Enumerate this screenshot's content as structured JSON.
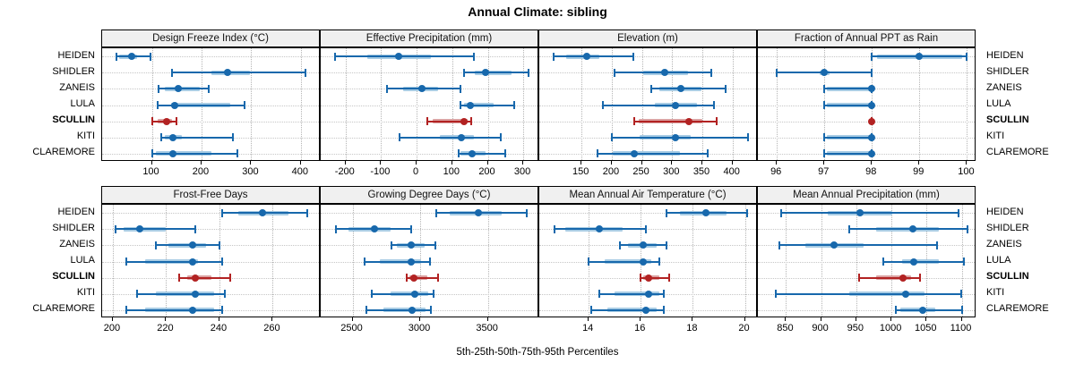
{
  "title": "Annual Climate: sibling",
  "footer": "5th-25th-50th-75th-95th Percentiles",
  "colors": {
    "blue_dark": "#1768ac",
    "blue_light": "#a8cce4",
    "red_dark": "#b22222",
    "red_light": "#dba3a3",
    "header_bg": "#f0f0f0",
    "panel_border": "#000000",
    "grid": "#b5b5b5"
  },
  "chart_data": {
    "type": "percentile-dotplot",
    "percentiles": [
      5,
      25,
      50,
      75,
      95
    ],
    "sites": [
      "HEIDEN",
      "SHIDLER",
      "ZANEIS",
      "LULA",
      "SCULLIN",
      "KITI",
      "CLAREMORE"
    ],
    "highlight_site": "SCULLIN",
    "legend_note": "5th-25th-50th-75th-95th Percentiles",
    "panels": [
      {
        "title": "Design Freeze Index (°C)",
        "row": 0,
        "col": 0,
        "xlim": [
          0,
          440
        ],
        "ticks": [
          100,
          200,
          300,
          400
        ],
        "values": {
          "HEIDEN": [
            28,
            34,
            60,
            71,
            98
          ],
          "SHIDLER": [
            140,
            220,
            252,
            298,
            410
          ],
          "ZANEIS": [
            113,
            127,
            154,
            197,
            215
          ],
          "LULA": [
            112,
            138,
            146,
            258,
            287
          ],
          "SCULLIN": [
            100,
            112,
            130,
            140,
            150
          ],
          "KITI": [
            119,
            127,
            143,
            160,
            263
          ],
          "CLAREMORE": [
            101,
            108,
            142,
            220,
            272
          ]
        }
      },
      {
        "title": "Effective Precipitation (mm)",
        "row": 0,
        "col": 1,
        "xlim": [
          -270,
          345
        ],
        "ticks": [
          -200,
          -100,
          0,
          100,
          200,
          300
        ],
        "values": {
          "HEIDEN": [
            -230,
            -140,
            -50,
            40,
            160
          ],
          "SHIDLER": [
            134,
            164,
            194,
            266,
            315
          ],
          "ZANEIS": [
            -83,
            -39,
            15,
            61,
            124
          ],
          "LULA": [
            124,
            134,
            150,
            216,
            275
          ],
          "SCULLIN": [
            30,
            45,
            134,
            144,
            154
          ],
          "KITI": [
            -49,
            64,
            125,
            161,
            236
          ],
          "CLAREMORE": [
            118,
            123,
            155,
            195,
            250
          ]
        }
      },
      {
        "title": "Elevation (m)",
        "row": 0,
        "col": 2,
        "xlim": [
          80,
          442
        ],
        "ticks": [
          150,
          200,
          250,
          300,
          350,
          400
        ],
        "values": {
          "HEIDEN": [
            103,
            125,
            158,
            180,
            235
          ],
          "SHIDLER": [
            205,
            252,
            288,
            327,
            365
          ],
          "ZANEIS": [
            265,
            278,
            315,
            348,
            388
          ],
          "LULA": [
            185,
            271,
            306,
            341,
            369
          ],
          "SCULLIN": [
            237,
            245,
            328,
            350,
            374
          ],
          "KITI": [
            200,
            246,
            305,
            331,
            425
          ],
          "CLAREMORE": [
            177,
            201,
            237,
            313,
            359
          ]
        }
      },
      {
        "title": "Fraction of Annual PPT as Rain",
        "row": 0,
        "col": 3,
        "xlim": [
          95.6,
          100.2
        ],
        "ticks": [
          96,
          97,
          98,
          99,
          100
        ],
        "values": {
          "HEIDEN": [
            98,
            98.1,
            99,
            99.9,
            100
          ],
          "SHIDLER": [
            96,
            96.9,
            97,
            97.1,
            98
          ],
          "ZANEIS": [
            97,
            97.05,
            98,
            98,
            98
          ],
          "LULA": [
            97,
            97.05,
            98,
            98,
            98
          ],
          "SCULLIN": [
            98,
            98,
            98,
            98,
            98
          ],
          "KITI": [
            97,
            97.05,
            98,
            98,
            98
          ],
          "CLAREMORE": [
            97,
            97.05,
            98,
            98,
            98
          ]
        }
      },
      {
        "title": "Frost-Free Days",
        "row": 1,
        "col": 0,
        "xlim": [
          196,
          278
        ],
        "ticks": [
          200,
          220,
          240,
          260
        ],
        "values": {
          "HEIDEN": [
            241,
            247,
            256,
            266,
            273
          ],
          "SHIDLER": [
            201,
            204,
            210,
            220,
            231
          ],
          "ZANEIS": [
            216,
            221,
            230,
            235,
            240
          ],
          "LULA": [
            205,
            212,
            230,
            232,
            241
          ],
          "SCULLIN": [
            225,
            228,
            231,
            237,
            244
          ],
          "KITI": [
            209,
            216,
            231,
            238,
            242
          ],
          "CLAREMORE": [
            205,
            212,
            230,
            238,
            241
          ]
        }
      },
      {
        "title": "Growing Degree Days (°C)",
        "row": 1,
        "col": 1,
        "xlim": [
          2265,
          3880
        ],
        "ticks": [
          2500,
          3000,
          3500
        ],
        "values": {
          "HEIDEN": [
            3120,
            3220,
            3430,
            3600,
            3790
          ],
          "SHIDLER": [
            2380,
            2470,
            2660,
            2780,
            2930
          ],
          "ZANEIS": [
            2790,
            2830,
            2930,
            3030,
            3110
          ],
          "LULA": [
            2590,
            2700,
            2930,
            3010,
            3070
          ],
          "SCULLIN": [
            2900,
            2920,
            2950,
            3050,
            3130
          ],
          "KITI": [
            2640,
            2780,
            2960,
            3060,
            3100
          ],
          "CLAREMORE": [
            2600,
            2730,
            2940,
            3040,
            3080
          ]
        }
      },
      {
        "title": "Mean Annual Air Temperature (°C)",
        "row": 1,
        "col": 2,
        "xlim": [
          12.1,
          20.5
        ],
        "ticks": [
          14,
          16,
          18,
          20
        ],
        "values": {
          "HEIDEN": [
            17.0,
            17.5,
            18.5,
            19.3,
            20.1
          ],
          "SHIDLER": [
            12.7,
            13.1,
            14.4,
            15.3,
            16.2
          ],
          "ZANEIS": [
            15.2,
            15.5,
            16.1,
            16.6,
            17.0
          ],
          "LULA": [
            14.0,
            14.6,
            16.1,
            16.4,
            16.7
          ],
          "SCULLIN": [
            16.0,
            16.1,
            16.3,
            16.7,
            17.1
          ],
          "KITI": [
            14.4,
            15.0,
            16.3,
            16.7,
            16.9
          ],
          "CLAREMORE": [
            14.1,
            14.7,
            16.2,
            16.6,
            16.9
          ]
        }
      },
      {
        "title": "Mean Annual Precipitation (mm)",
        "row": 1,
        "col": 3,
        "xlim": [
          810,
          1121
        ],
        "ticks": [
          850,
          900,
          950,
          1000,
          1050,
          1100
        ],
        "values": {
          "HEIDEN": [
            843,
            909,
            955,
            1001,
            1095
          ],
          "SHIDLER": [
            940,
            978,
            1030,
            1067,
            1108
          ],
          "ZANEIS": [
            840,
            878,
            918,
            960,
            1065
          ],
          "LULA": [
            988,
            1015,
            1032,
            1068,
            1103
          ],
          "SCULLIN": [
            954,
            978,
            1016,
            1028,
            1040
          ],
          "KITI": [
            835,
            940,
            1020,
            1047,
            1099
          ],
          "CLAREMORE": [
            1006,
            1012,
            1045,
            1062,
            1100
          ]
        }
      }
    ]
  }
}
